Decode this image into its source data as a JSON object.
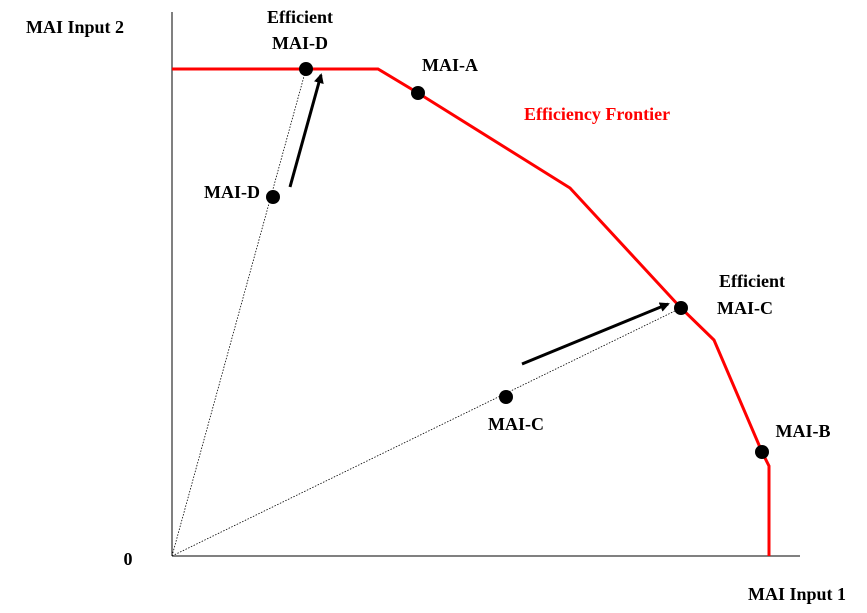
{
  "axes": {
    "y_label": "MAI Input 2",
    "x_label": "MAI Input 1",
    "origin": "0"
  },
  "frontier": {
    "label": "Efficiency Frontier"
  },
  "points": [
    {
      "label_lines": [
        "Efficient",
        "MAI-D"
      ]
    },
    {
      "label_lines": [
        "MAI-A"
      ]
    },
    {
      "label_lines": [
        "MAI-D"
      ]
    },
    {
      "label_lines": [
        "Efficient",
        "MAI-C"
      ]
    },
    {
      "label_lines": [
        "MAI-C"
      ]
    },
    {
      "label_lines": [
        "MAI-B"
      ]
    }
  ]
}
